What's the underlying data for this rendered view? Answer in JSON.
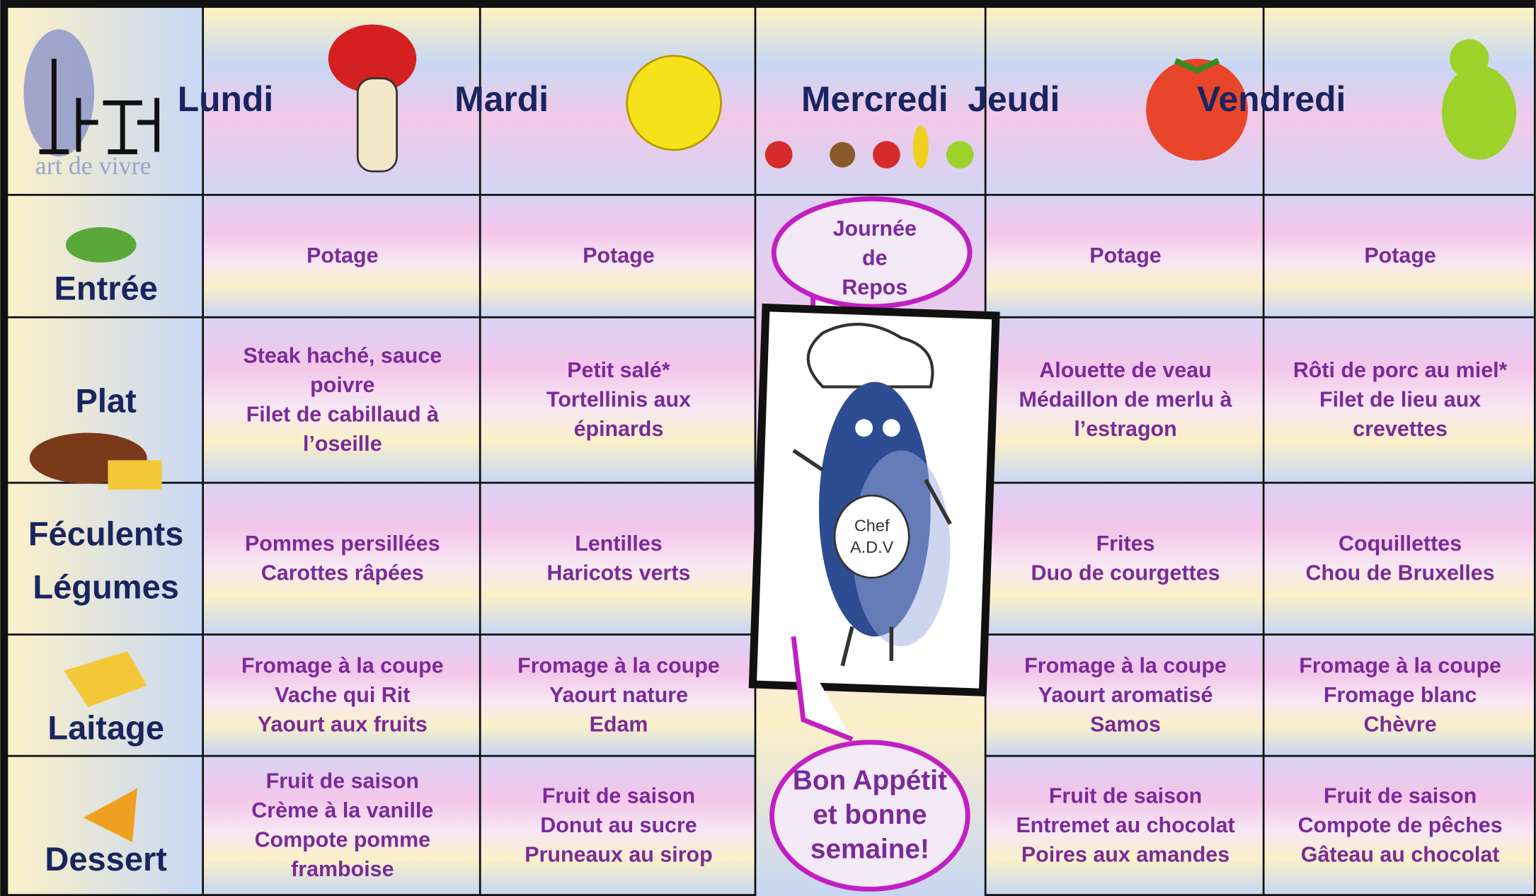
{
  "header": {
    "logo_text": "art de vivre",
    "days": [
      "Lundi",
      "Mardi",
      "Mercredi",
      "Jeudi",
      "Vendredi"
    ]
  },
  "menu": {
    "rows": [
      {
        "label": [
          "Entrée"
        ],
        "cells": [
          [
            "Potage"
          ],
          [
            "Potage"
          ],
          [
            "Potage"
          ],
          [
            "Potage"
          ]
        ]
      },
      {
        "label": [
          "Plat"
        ],
        "cells": [
          [
            "Steak haché, sauce",
            "poivre",
            "Filet de cabillaud à",
            "l’oseille"
          ],
          [
            "Petit salé*",
            "Tortellinis aux",
            "épinards"
          ],
          [
            "Alouette de veau",
            "Médaillon de merlu à",
            "l’estragon"
          ],
          [
            "Rôti de porc au miel*",
            "Filet de lieu aux",
            "crevettes"
          ]
        ]
      },
      {
        "label": [
          "Féculents",
          "Légumes"
        ],
        "cells": [
          [
            "Pommes persillées",
            "Carottes râpées"
          ],
          [
            "Lentilles",
            "Haricots verts"
          ],
          [
            "Frites",
            "Duo de courgettes"
          ],
          [
            "Coquillettes",
            "Chou de Bruxelles"
          ]
        ]
      },
      {
        "label": [
          "Laitage"
        ],
        "cells": [
          [
            "Fromage à la coupe",
            "Vache qui Rit",
            "Yaourt aux fruits"
          ],
          [
            "Fromage à la coupe",
            "Yaourt nature",
            "Edam"
          ],
          [
            "Fromage à la coupe",
            "Yaourt aromatisé",
            "Samos"
          ],
          [
            "Fromage à la coupe",
            "Fromage blanc",
            "Chèvre"
          ]
        ]
      },
      {
        "label": [
          "Dessert"
        ],
        "cells": [
          [
            "Fruit de saison",
            "Crème à la vanille",
            "Compote pomme",
            "framboise"
          ],
          [
            "Fruit de saison",
            "Donut au sucre",
            "Pruneaux au sirop"
          ],
          [
            "Fruit de saison",
            "Entremet au chocolat",
            "Poires aux amandes"
          ],
          [
            "Fruit de saison",
            "Compote de pêches",
            "Gâteau au chocolat"
          ]
        ]
      }
    ]
  },
  "wednesday": {
    "rest_bubble": [
      "Journée",
      "de",
      "Repos"
    ],
    "chef_badge": [
      "Chef",
      "A.D.V"
    ],
    "closing_bubble": [
      "Bon Appétit",
      "et bonne",
      "semaine!"
    ]
  }
}
